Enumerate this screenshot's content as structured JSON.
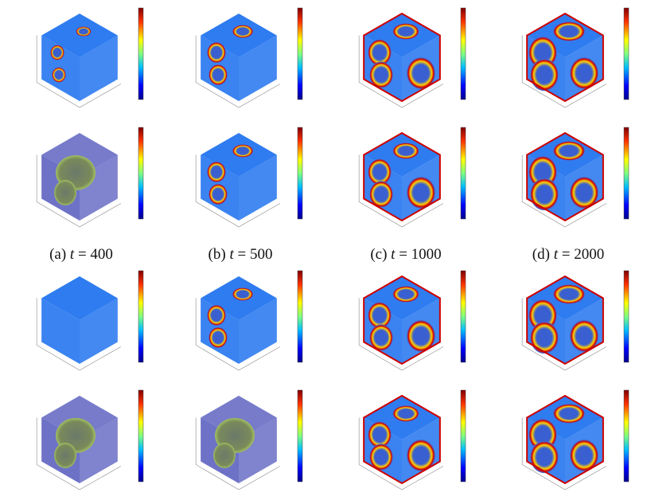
{
  "captions": [
    {
      "label": "(a)",
      "variable": "t",
      "value": "= 400"
    },
    {
      "label": "(b)",
      "variable": "t",
      "value": "= 500"
    },
    {
      "label": "(c)",
      "variable": "t",
      "value": "= 1000"
    },
    {
      "label": "(d)",
      "variable": "t",
      "value": "= 2000"
    }
  ]
}
